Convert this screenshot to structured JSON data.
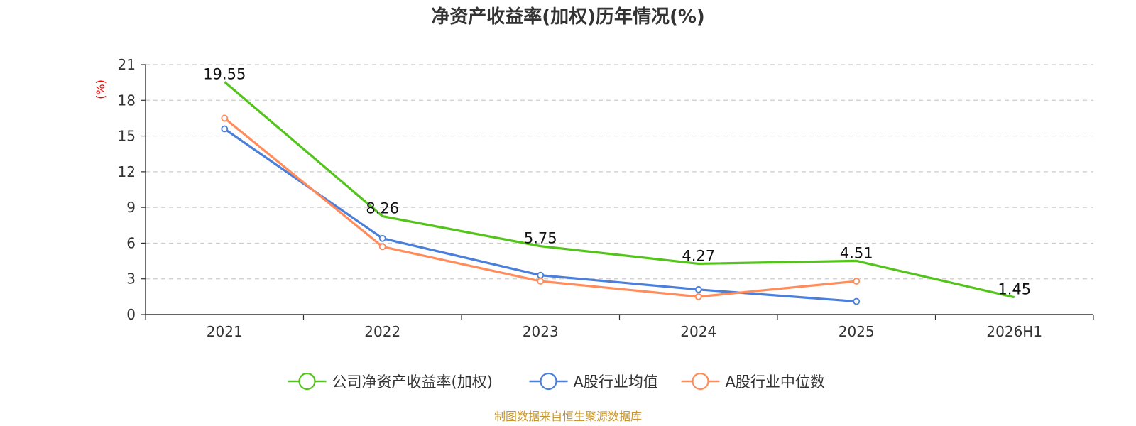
{
  "chart_data": {
    "type": "line",
    "title": "净资产收益率(加权)历年情况(%)",
    "ylabel": "(%)",
    "xlabel": "",
    "categories": [
      "2021",
      "2022",
      "2023",
      "2024",
      "2025",
      "2026H1"
    ],
    "ylim": [
      0,
      21
    ],
    "yticks": [
      0,
      3,
      6,
      9,
      12,
      15,
      18,
      21
    ],
    "grid": true,
    "legend_position": "bottom",
    "series": [
      {
        "name": "公司净资产收益率(加权)",
        "color": "#52c41a",
        "values": [
          19.55,
          8.26,
          5.75,
          4.27,
          4.51,
          1.45
        ],
        "labels": true,
        "markers": false
      },
      {
        "name": "A股行业均值",
        "color": "#4a7fdc",
        "values": [
          15.6,
          6.4,
          3.3,
          2.1,
          1.1,
          null
        ],
        "labels": false,
        "markers": true
      },
      {
        "name": "A股行业中位数",
        "color": "#ff8c5a",
        "values": [
          16.5,
          5.7,
          2.8,
          1.5,
          2.8,
          null
        ],
        "labels": false,
        "markers": true
      }
    ]
  },
  "footer": {
    "source": "制图数据来自恒生聚源数据库"
  }
}
